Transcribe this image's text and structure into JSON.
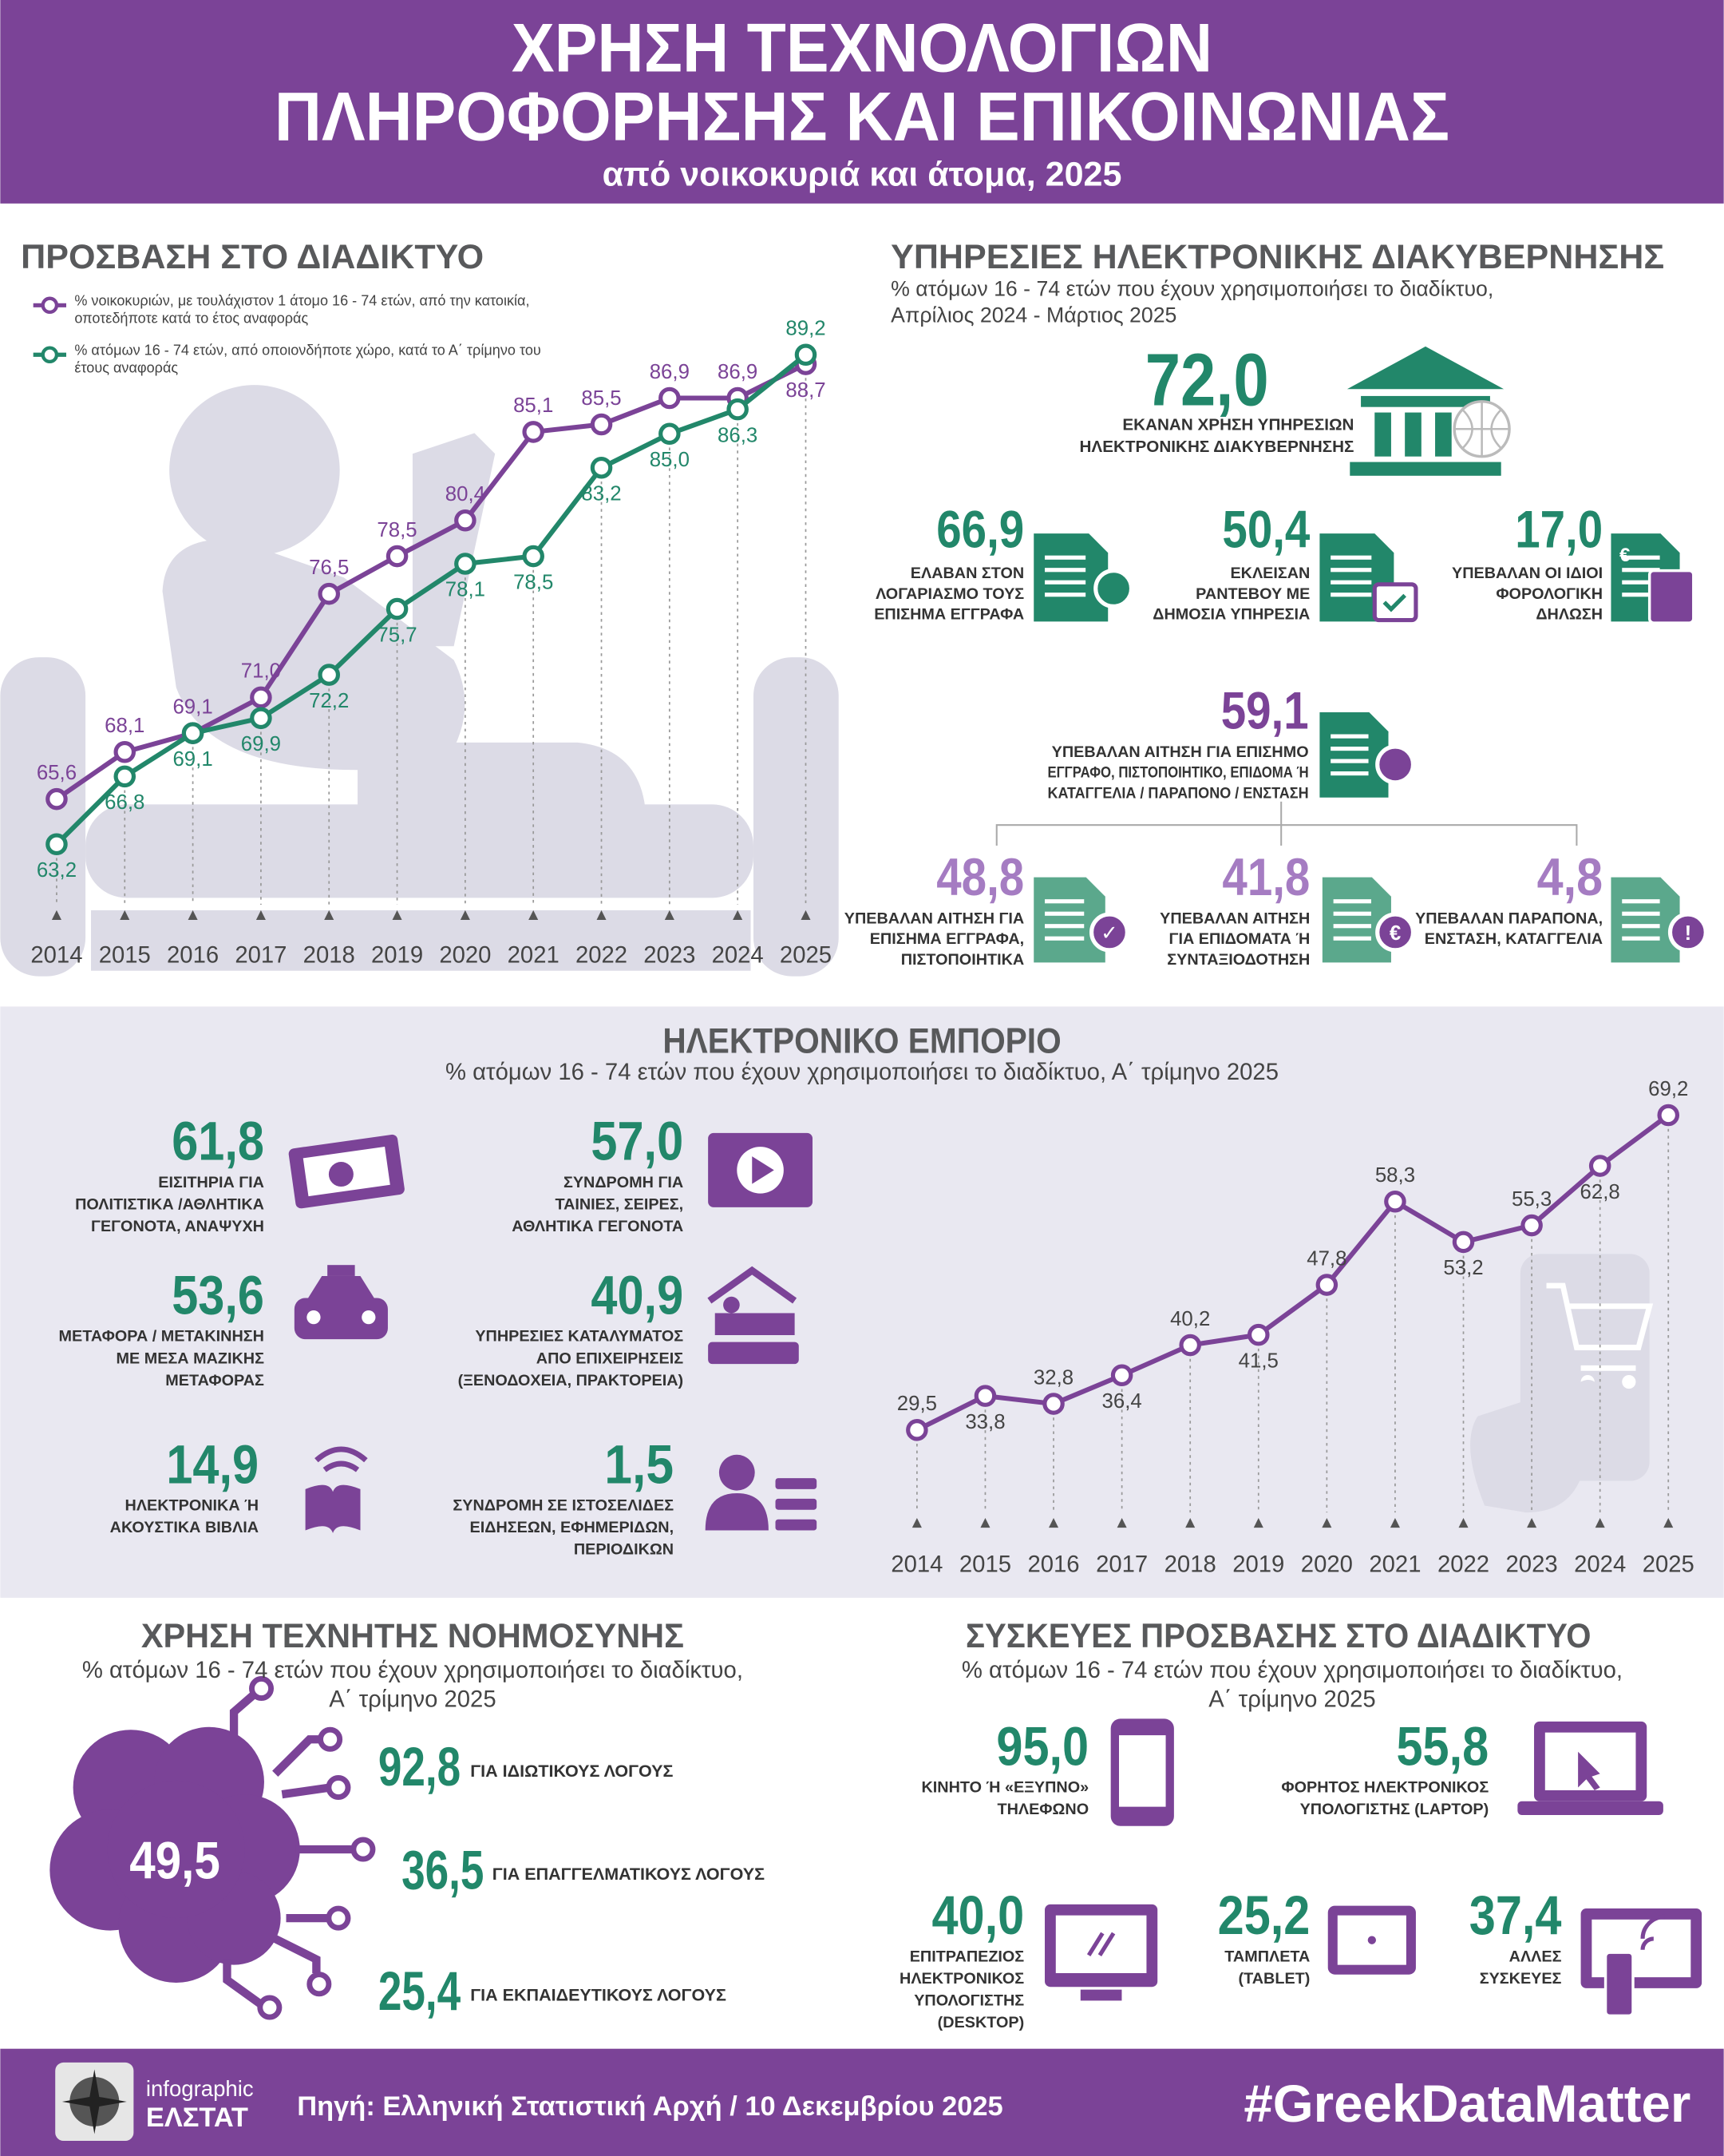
{
  "header": {
    "title": [
      "ΧΡΗΣΗ ΤΕΧΝΟΛΟΓΙΩΝ",
      "ΠΛΗΡΟΦΟΡΗΣΗΣ ΚΑΙ ΕΠΙΚΟΙΝΩΝΙΑΣ"
    ],
    "subtitle": "από νοικοκυριά και άτομα, 2025"
  },
  "chart_data": [
    {
      "type": "line",
      "title": "ΠΡΟΣΒΑΣΗ ΣΤΟ ΔΙΑΔΙΚΤΥΟ",
      "categories": [
        "2014",
        "2015",
        "2016",
        "2017",
        "2018",
        "2019",
        "2020",
        "2021",
        "2022",
        "2023",
        "2024",
        "2025"
      ],
      "series": [
        {
          "name": "% νοικοκυριών, με τουλάχιστον 1 άτομο 16 - 74 ετών, από την κατοικία, οποτεδήποτε κατά το έτος αναφοράς",
          "color": "#7b4397",
          "values": [
            65.6,
            68.1,
            69.1,
            71.0,
            76.5,
            78.5,
            80.4,
            85.1,
            85.5,
            86.9,
            86.9,
            88.7
          ],
          "value_labels": [
            "65,6",
            "68,1",
            "69,1",
            "71,0",
            "76,5",
            "78,5",
            "80,4",
            "85,1",
            "85,5",
            "86,9",
            "86,9",
            "88,7"
          ]
        },
        {
          "name": "% ατόμων 16 - 74 ετών, από οποιονδήποτε χώρο, κατά το Α΄ τρίμηνο του έτους αναφοράς",
          "color": "#22876a",
          "values": [
            63.2,
            66.8,
            69.1,
            69.9,
            72.2,
            75.7,
            78.1,
            78.5,
            83.2,
            85.0,
            86.3,
            89.2
          ],
          "value_labels": [
            "63,2",
            "66,8",
            "69,1",
            "69,9",
            "72,2",
            "75,7",
            "78,1",
            "78,5",
            "83,2",
            "85,0",
            "86,3",
            "89,2"
          ]
        }
      ]
    },
    {
      "type": "line",
      "title": "ΗΛΕΚΤΡΟΝΙΚΟ ΕΜΠΟΡΙΟ",
      "subtitle": "% ατόμων 16 - 74 ετών που έχουν χρησιμοποιήσει το διαδίκτυο, Α΄ τρίμηνο 2025",
      "categories": [
        "2014",
        "2015",
        "2016",
        "2017",
        "2018",
        "2019",
        "2020",
        "2021",
        "2022",
        "2023",
        "2024",
        "2025"
      ],
      "color": "#7b4397",
      "values": [
        29.5,
        33.8,
        32.8,
        36.4,
        40.2,
        41.5,
        47.8,
        58.3,
        53.2,
        55.3,
        62.8,
        69.2
      ],
      "value_labels": [
        "29,5",
        "33,8",
        "32,8",
        "36,4",
        "40,2",
        "41,5",
        "47,8",
        "58,3",
        "53,2",
        "55,3",
        "62,8",
        "69,2"
      ]
    }
  ],
  "egov": {
    "title": "ΥΠΗΡΕΣΙΕΣ ΗΛΕΚΤΡΟΝΙΚΗΣ ΔΙΑΚΥΒΕΡΝΗΣΗΣ",
    "subtitle": [
      "% ατόμων 16 - 74 ετών που έχουν χρησιμοποιήσει το διαδίκτυο,",
      "Απρίλιος 2024 - Μάρτιος 2025"
    ],
    "main": {
      "value": "72,0",
      "label": [
        "ΕΚΑΝΑΝ ΧΡΗΣΗ ΥΠΗΡΕΣΙΩΝ",
        "ΗΛΕΚΤΡΟΝΙΚΗΣ ΔΙΑΚΥΒΕΡΝΗΣΗΣ"
      ]
    },
    "items": [
      {
        "value": "66,9",
        "label": [
          "ΕΛΑΒΑΝ ΣΤΟΝ",
          "ΛΟΓΑΡΙΑΣΜΟ ΤΟΥΣ",
          "ΕΠΙΣΗΜΑ ΕΓΓΡΑΦΑ"
        ]
      },
      {
        "value": "50,4",
        "label": [
          "ΕΚΛΕΙΣΑΝ",
          "ΡΑΝΤΕΒΟΥ ΜΕ",
          "ΔΗΜΟΣΙΑ ΥΠΗΡΕΣΙΑ"
        ]
      },
      {
        "value": "17,0",
        "label": [
          "ΥΠΕΒΑΛΑΝ ΟΙ ΙΔΙΟΙ",
          "ΦΟΡΟΛΟΓΙΚΗ",
          "ΔΗΛΩΣΗ"
        ]
      }
    ],
    "application": {
      "value": "59,1",
      "label": [
        "ΥΠΕΒΑΛΑΝ ΑΙΤΗΣΗ ΓΙΑ ΕΠΙΣΗΜΟ",
        "ΕΓΓΡΑΦΟ, ΠΙΣΤΟΠΟΙΗΤΙΚΟ, ΕΠΙΔΟΜΑ Ή",
        "ΚΑΤΑΓΓΕΛΙΑ / ΠΑΡΑΠΟΝΟ / ΕΝΣΤΑΣΗ"
      ]
    },
    "sub_items": [
      {
        "value": "48,8",
        "label": [
          "ΥΠΕΒΑΛΑΝ ΑΙΤΗΣΗ ΓΙΑ",
          "ΕΠΙΣΗΜΑ ΕΓΓΡΑΦΑ,",
          "ΠΙΣΤΟΠΟΙΗΤΙΚΑ"
        ]
      },
      {
        "value": "41,8",
        "label": [
          "ΥΠΕΒΑΛΑΝ ΑΙΤΗΣΗ",
          "ΓΙΑ ΕΠΙΔΟΜΑΤΑ Ή",
          "ΣΥΝΤΑΞΙΟΔΟΤΗΣΗ"
        ]
      },
      {
        "value": "4,8",
        "label": [
          "ΥΠΕΒΑΛΑΝ ΠΑΡΑΠΟΝΑ,",
          "ΕΝΣΤΑΣΗ, ΚΑΤΑΓΓΕΛΙΑ"
        ]
      }
    ]
  },
  "ecommerce": {
    "items": [
      {
        "value": "61,8",
        "label": [
          "ΕΙΣΙΤΗΡΙΑ ΓΙΑ",
          "ΠΟΛΙΤΙΣΤΙΚΑ /ΑΘΛΗΤΙΚΑ",
          "ΓΕΓΟΝΟΤΑ, ΑΝΑΨΥΧΗ"
        ]
      },
      {
        "value": "57,0",
        "label": [
          "ΣΥΝΔΡΟΜΗ ΓΙΑ",
          "ΤΑΙΝΙΕΣ, ΣΕΙΡΕΣ,",
          "ΑΘΛΗΤΙΚΑ ΓΕΓΟΝΟΤΑ"
        ]
      },
      {
        "value": "53,6",
        "label": [
          "ΜΕΤΑΦΟΡΑ / ΜΕΤΑΚΙΝΗΣΗ",
          "ΜΕ ΜΕΣΑ ΜΑΖΙΚΗΣ",
          "ΜΕΤΑΦΟΡΑΣ"
        ]
      },
      {
        "value": "40,9",
        "label": [
          "ΥΠΗΡΕΣΙΕΣ ΚΑΤΑΛΥΜΑΤΟΣ",
          "ΑΠΟ ΕΠΙΧΕΙΡΗΣΕΙΣ",
          "(ΞΕΝΟΔΟΧΕΙΑ, ΠΡΑΚΤΟΡΕΙΑ)"
        ]
      },
      {
        "value": "14,9",
        "label": [
          "ΗΛΕΚΤΡΟΝΙΚΑ Ή",
          "ΑΚΟΥΣΤΙΚΑ ΒΙΒΛΙΑ"
        ]
      },
      {
        "value": "1,5",
        "label": [
          "ΣΥΝΔΡΟΜΗ ΣΕ ΙΣΤΟΣΕΛΙΔΕΣ",
          "ΕΙΔΗΣΕΩΝ, ΕΦΗΜΕΡΙΔΩΝ,",
          "ΠΕΡΙΟΔΙΚΩΝ"
        ]
      }
    ]
  },
  "ai": {
    "title": "ΧΡΗΣΗ ΤΕΧΝΗΤΗΣ ΝΟΗΜΟΣΥΝΗΣ",
    "subtitle": [
      "% ατόμων 16 - 74 ετών που έχουν χρησιμοποιήσει το διαδίκτυο,",
      "Α΄ τρίμηνο 2025"
    ],
    "total": "49,5",
    "items": [
      {
        "value": "92,8",
        "label": "ΓΙΑ ΙΔΙΩΤΙΚΟΥΣ ΛΟΓΟΥΣ"
      },
      {
        "value": "36,5",
        "label": "ΓΙΑ ΕΠΑΓΓΕΛΜΑΤΙΚΟΥΣ ΛΟΓΟΥΣ"
      },
      {
        "value": "25,4",
        "label": "ΓΙΑ ΕΚΠΑΙΔΕΥΤΙΚΟΥΣ ΛΟΓΟΥΣ"
      }
    ]
  },
  "devices": {
    "title": "ΣΥΣΚΕΥΕΣ ΠΡΟΣΒΑΣΗΣ ΣΤΟ ΔΙΑΔΙΚΤΥΟ",
    "subtitle": [
      "% ατόμων 16 - 74 ετών που έχουν χρησιμοποιήσει το διαδίκτυο,",
      "Α΄ τρίμηνο 2025"
    ],
    "items": [
      {
        "value": "95,0",
        "label": [
          "ΚΙΝΗΤΟ Ή «ΕΞΥΠΝΟ»",
          "ΤΗΛΕΦΩΝΟ"
        ]
      },
      {
        "value": "55,8",
        "label": [
          "ΦΟΡΗΤΟΣ ΗΛΕΚΤΡΟΝΙΚΟΣ",
          "ΥΠΟΛΟΓΙΣΤΗΣ (LAPTOP)"
        ]
      },
      {
        "value": "40,0",
        "label": [
          "ΕΠΙΤΡΑΠΕΖΙΟΣ",
          "ΗΛΕΚΤΡΟΝΙΚΟΣ",
          "ΥΠΟΛΟΓΙΣΤΗΣ",
          "(DESKTOP)"
        ]
      },
      {
        "value": "25,2",
        "label": [
          "ΤΑΜΠΛΕΤΑ",
          "(TABLET)"
        ]
      },
      {
        "value": "37,4",
        "label": [
          "ΑΛΛΕΣ",
          "ΣΥΣΚΕΥΕΣ"
        ]
      }
    ]
  },
  "footer": {
    "logo": [
      "infographic",
      "ΕΛΣΤΑΤ"
    ],
    "source": "Πηγή: Ελληνική Στατιστική Αρχή / 10 Δεκεμβρίου 2025",
    "hashtag": "#GreekDataMatter"
  }
}
